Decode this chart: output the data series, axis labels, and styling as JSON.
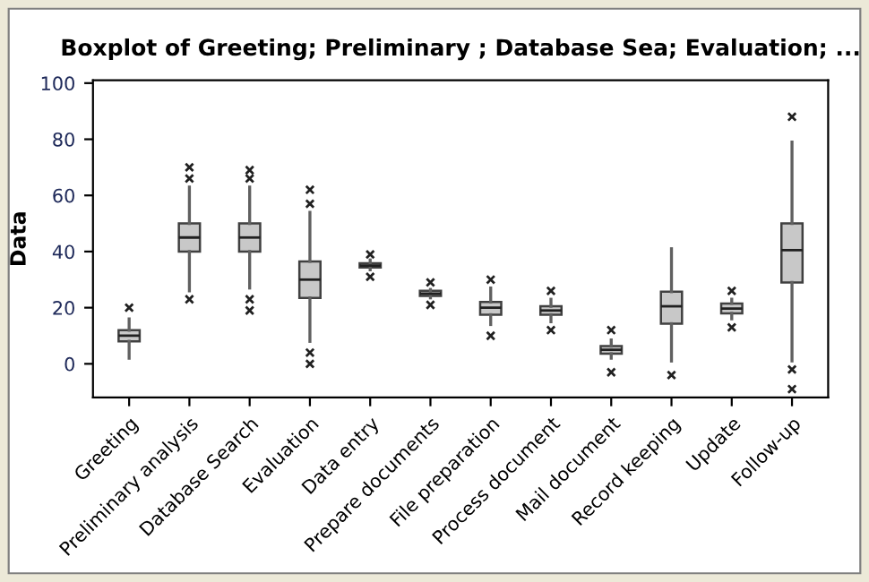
{
  "chart_data": {
    "type": "box",
    "title": "Boxplot of Greeting; Preliminary ; Database Sea; Evaluation; ...",
    "ylabel": "Data",
    "categories": [
      "Greeting",
      "Preliminary analysis",
      "Database Search",
      "Evaluation",
      "Data entry",
      "Prepare documents",
      "File preparation",
      "Process document",
      "Mail document",
      "Record keeping",
      "Update",
      "Follow-up"
    ],
    "color": "#c8c8c8",
    "boxes": [
      {
        "low": 2,
        "q1": 8,
        "median": 10,
        "q3": 12,
        "high": 16,
        "outliers": [
          20
        ]
      },
      {
        "low": 26,
        "q1": 40,
        "median": 45,
        "q3": 50,
        "high": 63,
        "outliers": [
          23,
          66,
          70
        ]
      },
      {
        "low": 27,
        "q1": 40,
        "median": 45,
        "q3": 50,
        "high": 63,
        "outliers": [
          19,
          23,
          66,
          69
        ]
      },
      {
        "low": 8,
        "q1": 23.5,
        "median": 30,
        "q3": 36.5,
        "high": 54,
        "outliers": [
          0,
          4,
          57,
          62
        ]
      },
      {
        "low": 33.5,
        "q1": 34.3,
        "median": 35,
        "q3": 35.8,
        "high": 37,
        "outliers": [
          31,
          39
        ]
      },
      {
        "low": 23.5,
        "q1": 24.2,
        "median": 25,
        "q3": 26,
        "high": 26.5,
        "outliers": [
          21,
          29
        ]
      },
      {
        "low": 14,
        "q1": 17.5,
        "median": 20,
        "q3": 22,
        "high": 27,
        "outliers": [
          10,
          30
        ]
      },
      {
        "low": 15,
        "q1": 17.5,
        "median": 19,
        "q3": 20.5,
        "high": 23,
        "outliers": [
          12,
          26
        ]
      },
      {
        "low": 2,
        "q1": 3.6,
        "median": 5,
        "q3": 6.3,
        "high": 8.5,
        "outliers": [
          -3,
          12
        ]
      },
      {
        "low": 1,
        "q1": 14.3,
        "median": 20.5,
        "q3": 25.7,
        "high": 41,
        "outliers": [
          -4
        ]
      },
      {
        "low": 16,
        "q1": 18,
        "median": 19.7,
        "q3": 21.5,
        "high": 23,
        "outliers": [
          13,
          26
        ]
      },
      {
        "low": 1,
        "q1": 29,
        "median": 40.5,
        "q3": 50,
        "high": 79,
        "outliers": [
          -9,
          -2,
          88
        ]
      }
    ],
    "ylim": [
      -12,
      101
    ],
    "yticks": [
      0,
      20,
      40,
      60,
      80,
      100
    ],
    "grid": false
  }
}
